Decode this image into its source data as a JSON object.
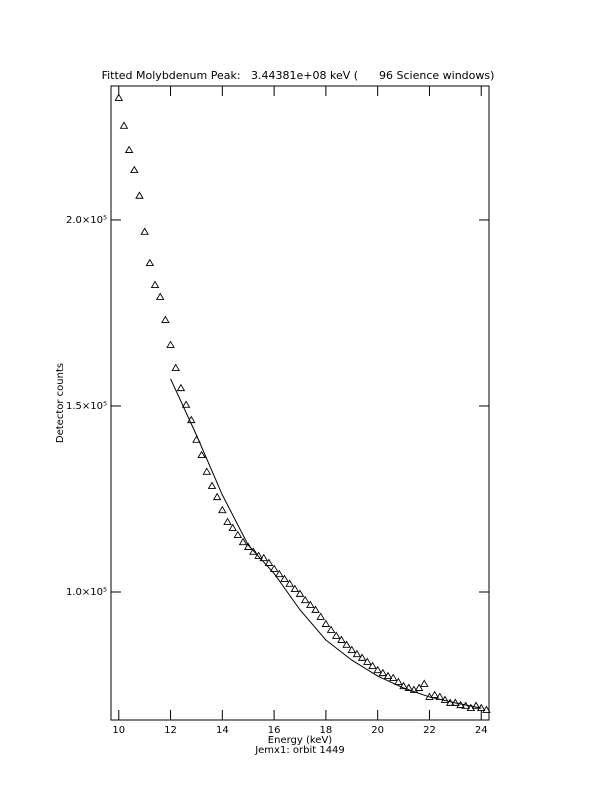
{
  "chart_data": {
    "type": "scatter",
    "title": "Fitted Molybdenum Peak:   3.44381e+08 keV (      96 Science windows)",
    "xlabel": "Energy (keV)",
    "ylabel": "Detector counts",
    "footer": "Jemx1: orbit 1449",
    "xlim": [
      9.7,
      24.3
    ],
    "xticks": [
      10,
      12,
      14,
      16,
      18,
      20,
      22,
      24
    ],
    "ylim": [
      65600,
      236000
    ],
    "yticks": [
      {
        "value": 100000,
        "label": "1.0×10⁵"
      },
      {
        "value": 150000,
        "label": "1.5×10⁵"
      },
      {
        "value": 200000,
        "label": "2.0×10⁵"
      }
    ],
    "series": [
      {
        "marker": "triangle",
        "color": "#000000",
        "x": [
          10.0,
          10.2,
          10.4,
          10.6,
          10.8,
          11.0,
          11.2,
          11.4,
          11.6,
          11.8,
          12.0,
          12.2,
          12.4,
          12.6,
          12.8,
          13.0,
          13.2,
          13.4,
          13.6,
          13.8,
          14.0,
          14.2,
          14.4,
          14.6,
          14.8,
          15.0,
          15.2,
          15.4,
          15.6,
          15.8,
          16.0,
          16.2,
          16.4,
          16.6,
          16.8,
          17.0,
          17.2,
          17.4,
          17.6,
          17.8,
          18.0,
          18.2,
          18.4,
          18.6,
          18.8,
          19.0,
          19.2,
          19.4,
          19.6,
          19.8,
          20.0,
          20.2,
          20.4,
          20.6,
          20.8,
          21.0,
          21.2,
          21.4,
          21.6,
          21.8,
          22.0,
          22.2,
          22.4,
          22.6,
          22.8,
          23.0,
          23.2,
          23.4,
          23.6,
          23.8,
          24.0,
          24.2
        ],
        "values": [
          232800,
          225300,
          218800,
          213400,
          206500,
          196800,
          188400,
          182500,
          179300,
          173100,
          166400,
          160200,
          154800,
          150300,
          146200,
          140900,
          136800,
          132300,
          128500,
          125500,
          122000,
          118800,
          117200,
          115300,
          113400,
          112100,
          110800,
          109700,
          109100,
          107800,
          106200,
          104800,
          103500,
          102200,
          100800,
          99500,
          97800,
          96500,
          95200,
          93300,
          91400,
          89800,
          88200,
          87100,
          85800,
          84400,
          83300,
          82300,
          81200,
          80100,
          79000,
          78200,
          77400,
          76900,
          75800,
          74700,
          74200,
          73700,
          74200,
          75300,
          71800,
          72300,
          71800,
          71000,
          70200,
          70200,
          69600,
          69400,
          68800,
          69400,
          68800,
          68300
        ]
      },
      {
        "marker": "line",
        "color": "#000000",
        "x": [
          12,
          13,
          14,
          15,
          16,
          17,
          18,
          19,
          20,
          21,
          22,
          23,
          24
        ],
        "values": [
          157300,
          142200,
          126100,
          112600,
          105000,
          95200,
          87100,
          81700,
          77400,
          74200,
          71800,
          70200,
          68800
        ]
      }
    ]
  }
}
